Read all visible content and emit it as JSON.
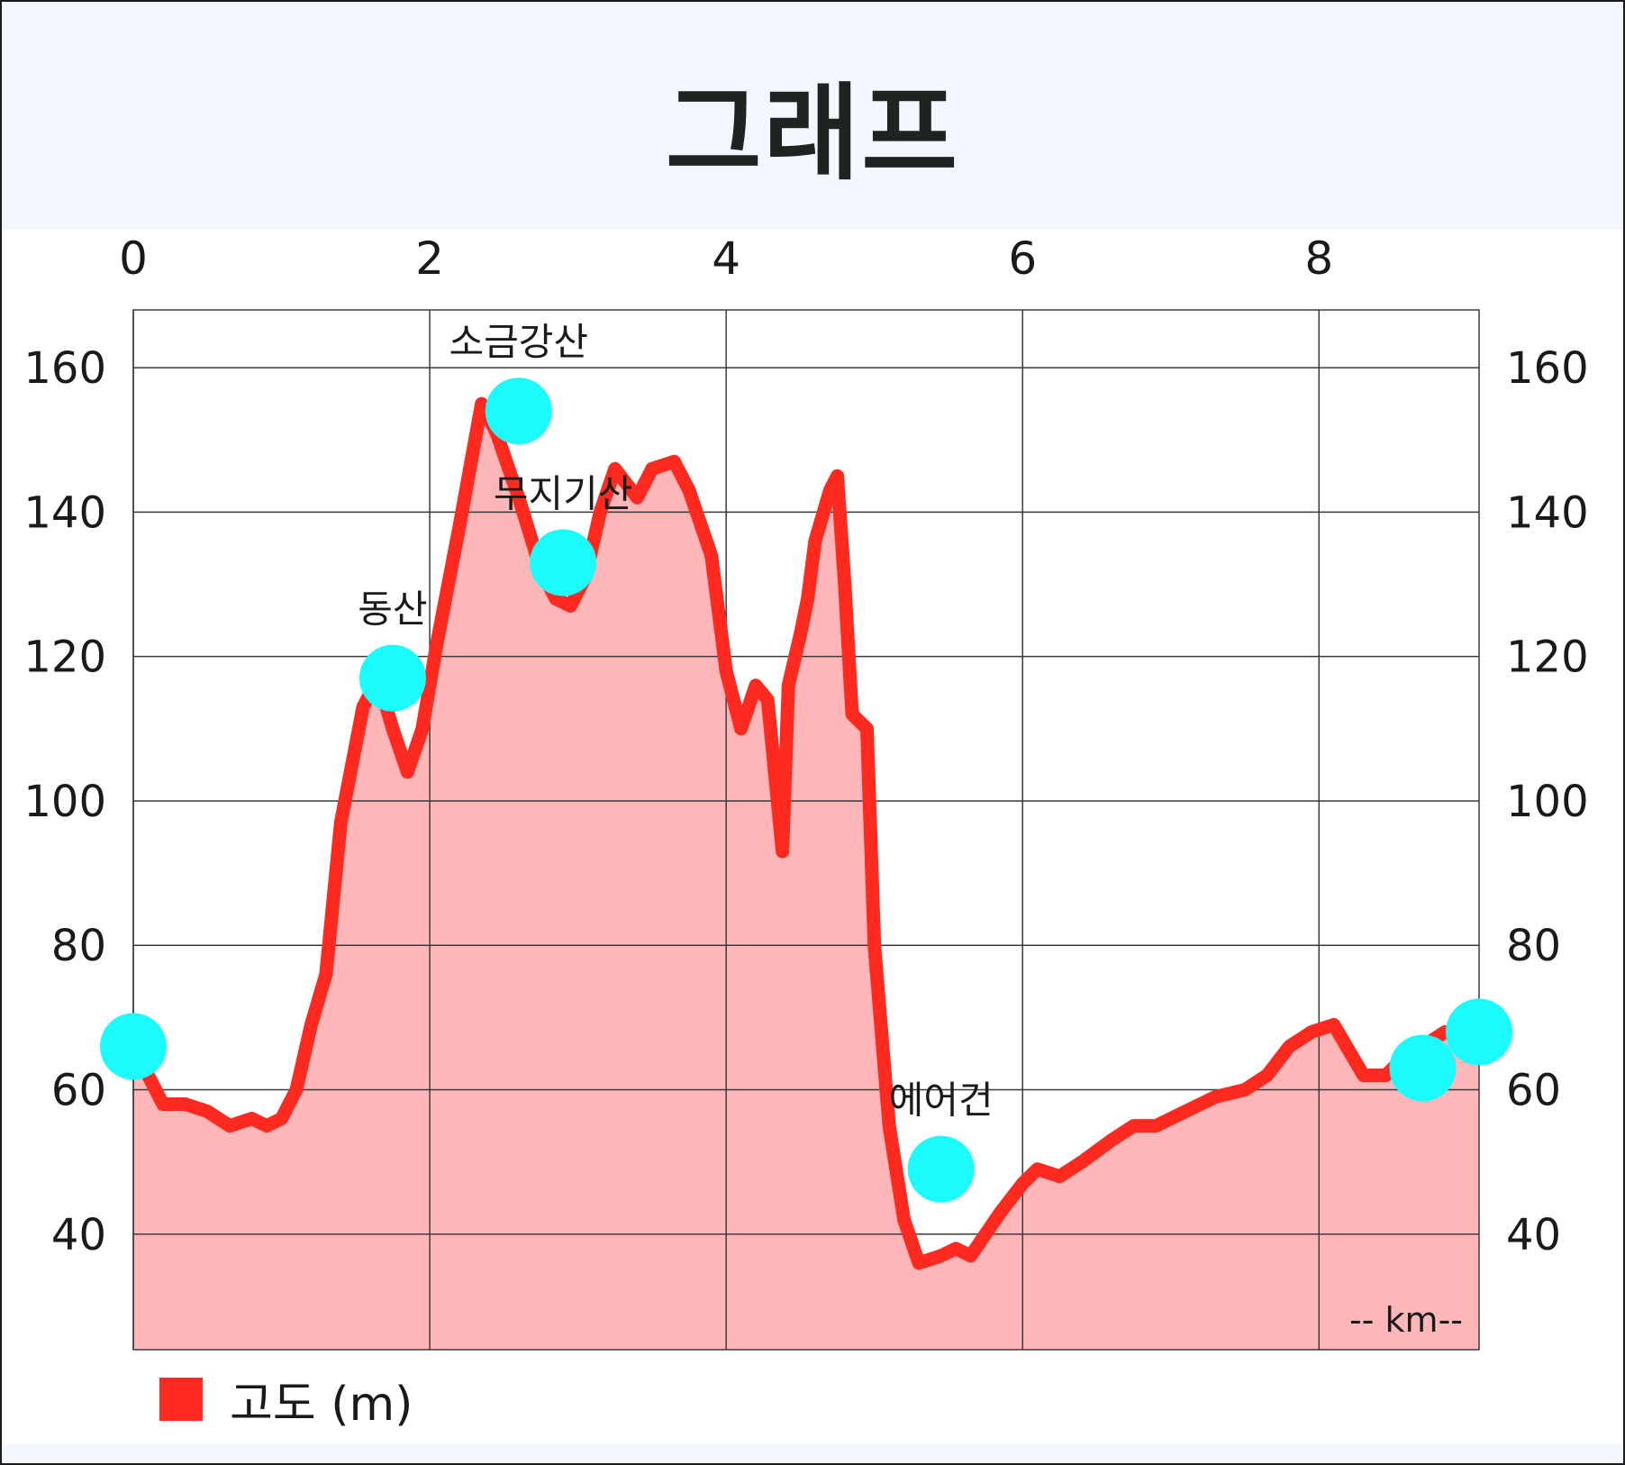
{
  "title": "그래프",
  "chart_data": {
    "type": "area",
    "title": "그래프",
    "unit_label": "-- km--",
    "series": [
      {
        "name": "고도 (m)",
        "color": "#ff2a1f",
        "fill": "#ffb6b9",
        "x": [
          0,
          0.2,
          0.35,
          0.5,
          0.65,
          0.8,
          0.9,
          1.0,
          1.1,
          1.2,
          1.3,
          1.4,
          1.55,
          1.65,
          1.75,
          1.85,
          1.95,
          2.05,
          2.2,
          2.35,
          2.45,
          2.6,
          2.75,
          2.85,
          2.95,
          3.05,
          3.15,
          3.25,
          3.4,
          3.5,
          3.65,
          3.75,
          3.8,
          3.9,
          4.0,
          4.1,
          4.2,
          4.28,
          4.38,
          4.42,
          4.5,
          4.55,
          4.6,
          4.7,
          4.75,
          4.8,
          4.85,
          4.95,
          5.0,
          5.1,
          5.2,
          5.3,
          5.45,
          5.55,
          5.65,
          5.75,
          5.85,
          6.0,
          6.1,
          6.25,
          6.4,
          6.6,
          6.75,
          6.9,
          7.1,
          7.3,
          7.5,
          7.65,
          7.8,
          7.95,
          8.1,
          8.3,
          8.45,
          8.55,
          8.7,
          8.85,
          9.0,
          9.08
        ],
        "y": [
          66,
          58,
          58,
          57,
          55,
          56,
          55,
          56,
          60,
          69,
          76,
          97,
          113,
          117,
          110,
          104,
          110,
          122,
          138,
          155,
          151,
          142,
          132,
          128,
          127,
          131,
          140,
          146,
          142,
          146,
          147,
          143,
          140,
          134,
          118,
          110,
          116,
          114,
          93,
          116,
          123,
          128,
          136,
          143,
          145,
          130,
          112,
          110,
          80,
          55,
          42,
          36,
          37,
          38,
          37,
          40,
          43,
          47,
          49,
          48,
          50,
          53,
          55,
          55,
          57,
          59,
          60,
          62,
          66,
          68,
          69,
          62,
          62,
          64,
          66,
          68,
          68,
          68
        ],
        "ylim": [
          24,
          168
        ]
      }
    ],
    "xlim": [
      0,
      9.08
    ],
    "ylim": [
      24,
      168
    ],
    "x_ticks": [
      0,
      2,
      4,
      6,
      8
    ],
    "y_ticks": [
      40,
      60,
      80,
      100,
      120,
      140,
      160
    ],
    "grid": true,
    "x_axis_position": "top",
    "y_axis_position": "both",
    "legend_position": "bottom-left",
    "waypoints": [
      {
        "x": 0.0,
        "y": 66,
        "label": ""
      },
      {
        "x": 1.75,
        "y": 117,
        "label": "동산"
      },
      {
        "x": 2.6,
        "y": 154,
        "label": "소금강산"
      },
      {
        "x": 2.9,
        "y": 133,
        "label": "무지기산"
      },
      {
        "x": 5.45,
        "y": 49,
        "label": "에어건"
      },
      {
        "x": 8.7,
        "y": 63,
        "label": ""
      },
      {
        "x": 9.08,
        "y": 68,
        "label": ""
      }
    ],
    "marker_color": "#1bfbfb"
  },
  "legend": {
    "label": "고도 (m)",
    "color": "#ff2a1f"
  }
}
